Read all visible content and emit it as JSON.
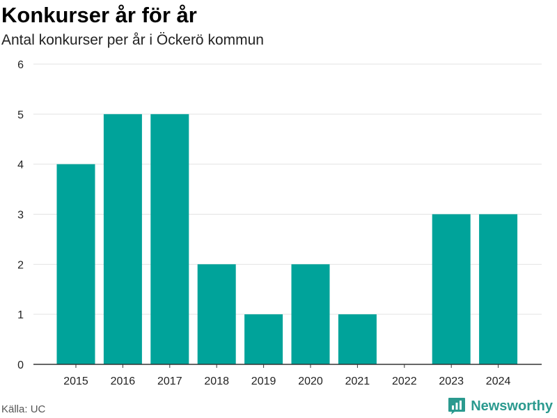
{
  "title": "Konkurser år för år",
  "subtitle": "Antal konkurser per år i Öckerö kommun",
  "source": "Källa: UC",
  "brand": {
    "name": "Newsworthy",
    "icon": "newsworthy-logo-icon",
    "color": "#2b9a8f"
  },
  "colors": {
    "bar": "#00a39a",
    "grid": "#e3e3e3",
    "axis": "#333333"
  },
  "chart_data": {
    "type": "bar",
    "categories": [
      "2015",
      "2016",
      "2017",
      "2018",
      "2019",
      "2020",
      "2021",
      "2022",
      "2023",
      "2024"
    ],
    "values": [
      4,
      5,
      5,
      2,
      1,
      2,
      1,
      0,
      3,
      3
    ],
    "ylim": [
      0,
      6
    ],
    "yticks": [
      0,
      1,
      2,
      3,
      4,
      5,
      6
    ],
    "xlabel": "",
    "ylabel": "",
    "grid": true,
    "legend": "none"
  }
}
